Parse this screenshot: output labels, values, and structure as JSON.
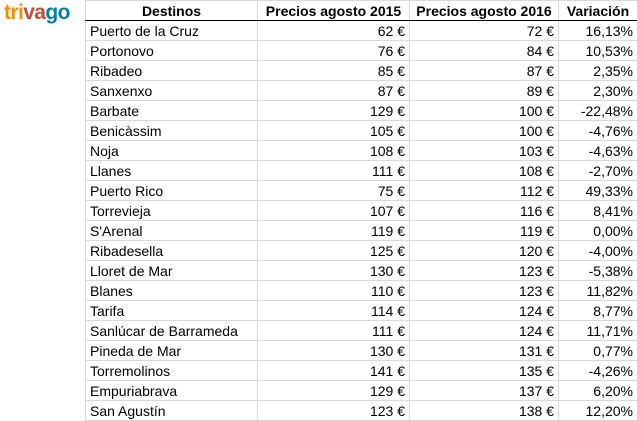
{
  "brand": {
    "part1": "tri",
    "part2": "va",
    "part3": "go"
  },
  "headers": [
    "Destinos",
    "Precios agosto 2015",
    "Precios agosto 2016",
    "Variación"
  ],
  "rows": [
    [
      "Puerto de la Cruz",
      "62 €",
      "72 €",
      "16,13%"
    ],
    [
      "Portonovo",
      "76 €",
      "84 €",
      "10,53%"
    ],
    [
      "Ribadeo",
      "85 €",
      "87 €",
      "2,35%"
    ],
    [
      "Sanxenxo",
      "87 €",
      "89 €",
      "2,30%"
    ],
    [
      "Barbate",
      "129 €",
      "100 €",
      "-22,48%"
    ],
    [
      "Benicàssim",
      "105 €",
      "100 €",
      "-4,76%"
    ],
    [
      "Noja",
      "108 €",
      "103 €",
      "-4,63%"
    ],
    [
      "Llanes",
      "111 €",
      "108 €",
      "-2,70%"
    ],
    [
      "Puerto Rico",
      "75 €",
      "112 €",
      "49,33%"
    ],
    [
      "Torrevieja",
      "107 €",
      "116 €",
      "8,41%"
    ],
    [
      "S'Arenal",
      "119 €",
      "119 €",
      "0,00%"
    ],
    [
      "Ribadesella",
      "125 €",
      "120 €",
      "-4,00%"
    ],
    [
      "Lloret de Mar",
      "130 €",
      "123 €",
      "-5,38%"
    ],
    [
      "Blanes",
      "110 €",
      "123 €",
      "11,82%"
    ],
    [
      "Tarifa",
      "114 €",
      "124 €",
      "8,77%"
    ],
    [
      "Sanlúcar de Barrameda",
      "111 €",
      "124 €",
      "11,71%"
    ],
    [
      "Pineda de Mar",
      "130 €",
      "131 €",
      "0,77%"
    ],
    [
      "Torremolinos",
      "141 €",
      "135 €",
      "-4,26%"
    ],
    [
      "Empuriabrava",
      "129 €",
      "137 €",
      "6,20%"
    ],
    [
      "San Agustín",
      "123 €",
      "138 €",
      "12,20%"
    ]
  ]
}
